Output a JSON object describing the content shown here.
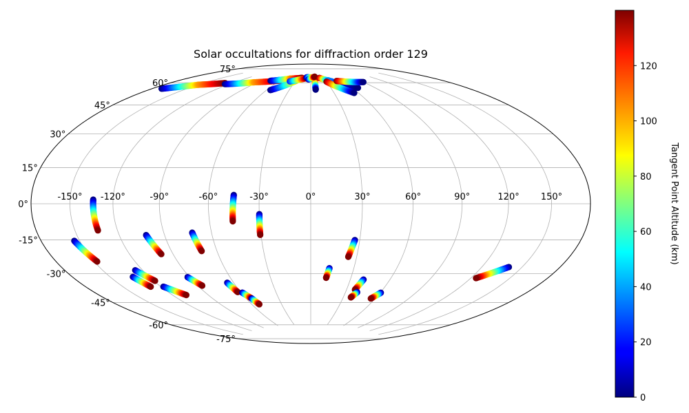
{
  "chart_data": {
    "type": "scatter",
    "projection": "hammer",
    "title": "Solar occultations for diffraction order 129",
    "x_ticks": [
      "-150°",
      "-120°",
      "-90°",
      "-60°",
      "-30°",
      "0°",
      "30°",
      "60°",
      "90°",
      "120°",
      "150°"
    ],
    "x_tick_values": [
      -150,
      -120,
      -90,
      -60,
      -30,
      0,
      30,
      60,
      90,
      120,
      150
    ],
    "y_ticks": [
      "75°",
      "60°",
      "45°",
      "30°",
      "15°",
      "0°",
      "-15°",
      "-30°",
      "-45°",
      "-60°",
      "-75°"
    ],
    "y_tick_values": [
      75,
      60,
      45,
      30,
      15,
      0,
      -15,
      -30,
      -45,
      -60,
      -75
    ],
    "xlim": [
      -180,
      180
    ],
    "ylim": [
      -90,
      90
    ],
    "grid": true,
    "colormap": "jet",
    "colorbar": {
      "label": "Tangent Point Altitude (km)",
      "range": [
        0,
        140
      ],
      "ticks": [
        "0",
        "20",
        "40",
        "60",
        "80",
        "100",
        "120"
      ],
      "tick_values": [
        0,
        20,
        40,
        60,
        80,
        100,
        120
      ]
    },
    "tracks": [
      {
        "lon": [
          -154.0,
          -147.8
        ],
        "lat": [
          -17.0,
          -27.5
        ],
        "alt": [
          0,
          140
        ]
      },
      {
        "lon": [
          -133.5,
          -133.5
        ],
        "lat": [
          2.0,
          -13.0
        ],
        "alt": [
          0,
          140
        ]
      },
      {
        "lon": [
          -132.5,
          -128.0
        ],
        "lat": [
          -37.0,
          -43.0
        ],
        "alt": [
          0,
          140
        ]
      },
      {
        "lon": [
          -125.5,
          -119.0
        ],
        "lat": [
          -34.0,
          -40.5
        ],
        "alt": [
          0,
          140
        ]
      },
      {
        "lon": [
          -118.0,
          -108.5
        ],
        "lat": [
          -44.0,
          -50.0
        ],
        "alt": [
          0,
          140
        ]
      },
      {
        "lon": [
          -102.0,
          -98.0
        ],
        "lat": [
          -16.5,
          -27.0
        ],
        "alt": [
          0,
          140
        ]
      },
      {
        "lon": [
          -91.5,
          -86.5
        ],
        "lat": [
          -40.5,
          -46.0
        ],
        "alt": [
          0,
          140
        ]
      },
      {
        "lon": [
          -72.0,
          -70.0
        ],
        "lat": [
          -16.0,
          -26.5
        ],
        "alt": [
          0,
          140
        ]
      },
      {
        "lon": [
          -65.0,
          -62.5
        ],
        "lat": [
          -45.5,
          -51.5
        ],
        "alt": [
          0,
          140
        ]
      },
      {
        "lon": [
          -59.0,
          -55.0
        ],
        "lat": [
          -52.0,
          -56.0
        ],
        "alt": [
          0,
          140
        ]
      },
      {
        "lon": [
          -55.0,
          -52.5
        ],
        "lat": [
          -56.0,
          -60.0
        ],
        "alt": [
          0,
          140
        ]
      },
      {
        "lon": [
          -45.0,
          -46.0
        ],
        "lat": [
          5.0,
          -10.0
        ],
        "alt": [
          0,
          140
        ]
      },
      {
        "lon": [
          -30.0,
          -30.5
        ],
        "lat": [
          -6.0,
          -18.0
        ],
        "alt": [
          0,
          140
        ]
      },
      {
        "lon": [
          13.0,
          11.5
        ],
        "lat": [
          -38.0,
          -44.0
        ],
        "alt": [
          0,
          140
        ]
      },
      {
        "lon": [
          27.0,
          24.5
        ],
        "lat": [
          -21.0,
          -31.0
        ],
        "alt": [
          0,
          140
        ]
      },
      {
        "lon": [
          40.0,
          37.0
        ],
        "lat": [
          -44.5,
          -51.0
        ],
        "alt": [
          0,
          140
        ]
      },
      {
        "lon": [
          40.0,
          37.0
        ],
        "lat": [
          -52.5,
          -56.0
        ],
        "alt": [
          0,
          140
        ]
      },
      {
        "lon": [
          60.5,
          56.0
        ],
        "lat": [
          -52.0,
          -56.0
        ],
        "alt": [
          0,
          140
        ]
      },
      {
        "lon": [
          140.0,
          124.0
        ],
        "lat": [
          -31.0,
          -38.5
        ],
        "alt": [
          0,
          140
        ]
      },
      {
        "lon": [
          -172.0,
          -150.0
        ],
        "lat": [
          57.0,
          64.0
        ],
        "alt": [
          0,
          100
        ]
      },
      {
        "lon": [
          -150.0,
          -128.0
        ],
        "lat": [
          64.0,
          68.5
        ],
        "alt": [
          100,
          140
        ]
      },
      {
        "lon": [
          -125.0,
          -95.0
        ],
        "lat": [
          68.0,
          72.5
        ],
        "alt": [
          0,
          100
        ]
      },
      {
        "lon": [
          -95.0,
          -60.0
        ],
        "lat": [
          72.5,
          76.0
        ],
        "alt": [
          100,
          140
        ]
      },
      {
        "lon": [
          -75.0,
          -45.0
        ],
        "lat": [
          75.0,
          78.0
        ],
        "alt": [
          0,
          100
        ]
      },
      {
        "lon": [
          -45.0,
          -20.0
        ],
        "lat": [
          78.0,
          79.0
        ],
        "alt": [
          100,
          140
        ]
      },
      {
        "lon": [
          -55.0,
          -28.0
        ],
        "lat": [
          69.0,
          77.0
        ],
        "alt": [
          0,
          100
        ]
      },
      {
        "lon": [
          -40.0,
          -10.0
        ],
        "lat": [
          76.0,
          79.0
        ],
        "alt": [
          20,
          140
        ]
      },
      {
        "lon": [
          -10.0,
          10.0
        ],
        "lat": [
          79.5,
          79.5
        ],
        "alt": [
          0,
          140
        ]
      },
      {
        "lon": [
          8.0,
          7.0
        ],
        "lat": [
          77.0,
          70.5
        ],
        "alt": [
          140,
          0
        ]
      },
      {
        "lon": [
          -5.0,
          10.0
        ],
        "lat": [
          78.0,
          80.0
        ],
        "alt": [
          0,
          140
        ]
      },
      {
        "lon": [
          20.0,
          40.0
        ],
        "lat": [
          79.0,
          76.0
        ],
        "alt": [
          140,
          0
        ]
      },
      {
        "lon": [
          35.0,
          68.0
        ],
        "lat": [
          77.0,
          70.0
        ],
        "alt": [
          40,
          0
        ]
      },
      {
        "lon": [
          30.0,
          55.0
        ],
        "lat": [
          76.0,
          67.0
        ],
        "alt": [
          140,
          0
        ]
      },
      {
        "lon": [
          50.0,
          90.0
        ],
        "lat": [
          76.0,
          73.0
        ],
        "alt": [
          140,
          0
        ]
      }
    ]
  }
}
